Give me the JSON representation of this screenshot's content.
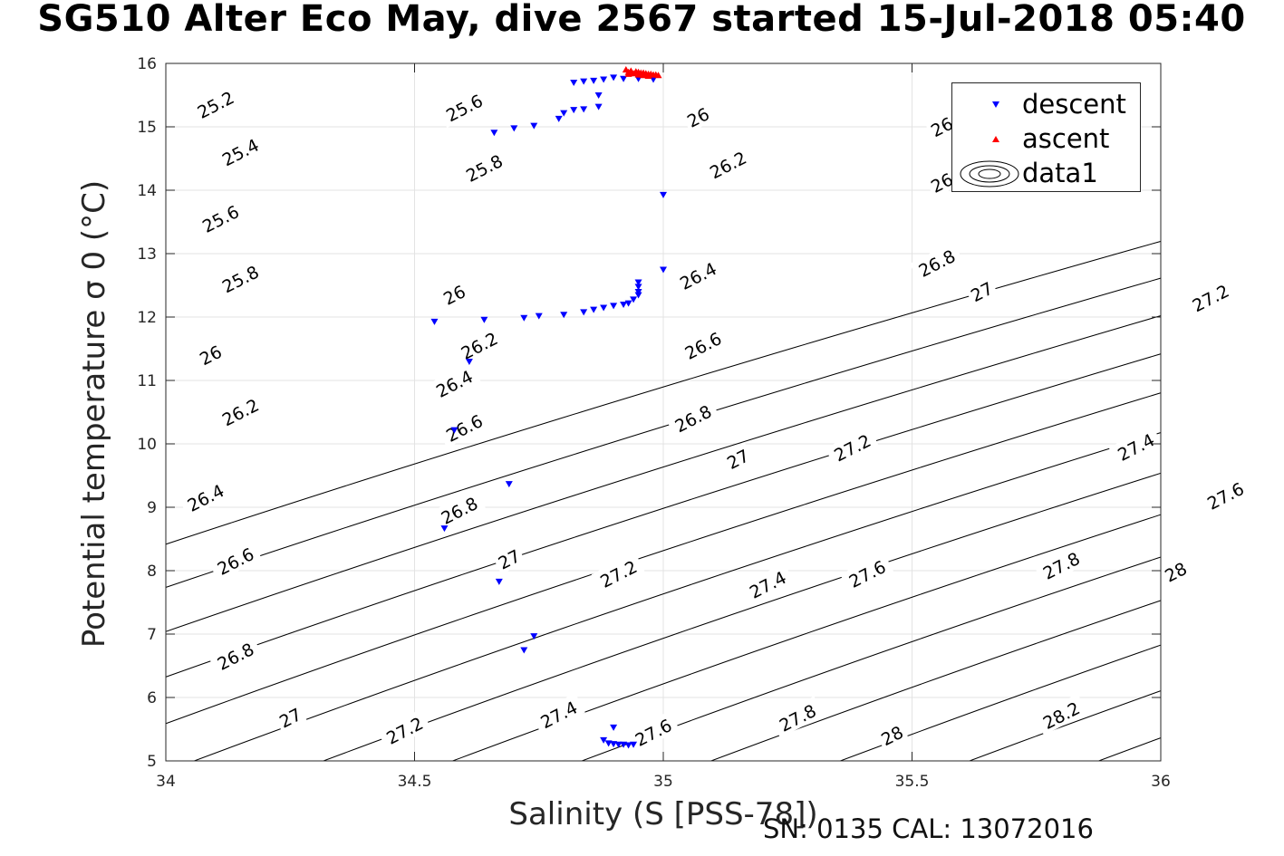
{
  "chart_data": {
    "type": "scatter",
    "title": "SG510 Alter Eco May, dive 2567 started 15-Jul-2018 05:40",
    "xlabel": "Salinity (S [PSS-78])",
    "ylabel": "Potential temperature σ 0 (°C)",
    "xlim": [
      34,
      36
    ],
    "ylim": [
      5,
      16
    ],
    "xticks": [
      "34",
      "34.5",
      "35",
      "35.5",
      "36"
    ],
    "yticks": [
      "5",
      "6",
      "7",
      "8",
      "9",
      "10",
      "11",
      "12",
      "13",
      "14",
      "15",
      "16"
    ],
    "grid": true,
    "legend_position": "top-right",
    "footer": "SN: 0135  CAL: 13072016",
    "series": [
      {
        "name": "descent",
        "marker": "triangle-down",
        "color": "#0000ff",
        "points": [
          [
            34.9,
            15.78
          ],
          [
            34.92,
            15.76
          ],
          [
            34.95,
            15.76
          ],
          [
            34.98,
            15.75
          ],
          [
            34.88,
            15.75
          ],
          [
            34.86,
            15.73
          ],
          [
            34.84,
            15.72
          ],
          [
            34.82,
            15.7
          ],
          [
            34.87,
            15.5
          ],
          [
            34.87,
            15.32
          ],
          [
            34.84,
            15.28
          ],
          [
            34.82,
            15.27
          ],
          [
            34.8,
            15.22
          ],
          [
            34.79,
            15.13
          ],
          [
            34.74,
            15.02
          ],
          [
            34.7,
            14.98
          ],
          [
            34.66,
            14.91
          ],
          [
            35.0,
            13.93
          ],
          [
            34.95,
            12.55
          ],
          [
            34.95,
            12.48
          ],
          [
            34.95,
            12.4
          ],
          [
            34.95,
            12.35
          ],
          [
            34.94,
            12.28
          ],
          [
            34.93,
            12.22
          ],
          [
            34.92,
            12.2
          ],
          [
            34.9,
            12.18
          ],
          [
            34.88,
            12.15
          ],
          [
            34.86,
            12.12
          ],
          [
            34.84,
            12.08
          ],
          [
            34.8,
            12.04
          ],
          [
            34.75,
            12.02
          ],
          [
            34.72,
            11.99
          ],
          [
            34.64,
            11.96
          ],
          [
            34.54,
            11.93
          ],
          [
            35.0,
            12.75
          ],
          [
            34.61,
            11.3
          ],
          [
            34.58,
            10.22
          ],
          [
            34.69,
            9.37
          ],
          [
            34.56,
            8.67
          ],
          [
            34.67,
            7.83
          ],
          [
            34.74,
            6.97
          ],
          [
            34.72,
            6.75
          ],
          [
            34.9,
            5.53
          ],
          [
            34.88,
            5.33
          ],
          [
            34.89,
            5.28
          ],
          [
            34.9,
            5.27
          ],
          [
            34.91,
            5.26
          ],
          [
            34.92,
            5.26
          ],
          [
            34.93,
            5.25
          ],
          [
            34.94,
            5.26
          ]
        ]
      },
      {
        "name": "ascent",
        "marker": "triangle-up",
        "color": "#ff0000",
        "points": [
          [
            34.925,
            15.9
          ],
          [
            34.935,
            15.88
          ],
          [
            34.945,
            15.87
          ],
          [
            34.95,
            15.86
          ],
          [
            34.955,
            15.85
          ],
          [
            34.96,
            15.85
          ],
          [
            34.965,
            15.84
          ],
          [
            34.97,
            15.83
          ],
          [
            34.975,
            15.83
          ],
          [
            34.98,
            15.82
          ],
          [
            34.985,
            15.82
          ],
          [
            34.99,
            15.81
          ],
          [
            34.93,
            15.86
          ],
          [
            34.94,
            15.84
          ],
          [
            34.95,
            15.82
          ],
          [
            34.96,
            15.81
          ],
          [
            34.97,
            15.8
          ],
          [
            34.93,
            15.83
          ]
        ]
      }
    ],
    "contours": {
      "name": "data1",
      "levels": [
        "25.2",
        "25.4",
        "25.6",
        "25.8",
        "26",
        "26.2",
        "26.4",
        "26.6",
        "26.8",
        "27",
        "27.2",
        "27.4",
        "27.6",
        "27.8",
        "28",
        "28.2"
      ],
      "labels": [
        {
          "level": "25.2",
          "x": 34.1,
          "y": 15.35
        },
        {
          "level": "25.4",
          "x": 34.15,
          "y": 14.6
        },
        {
          "level": "25.6",
          "x": 34.11,
          "y": 13.55
        },
        {
          "level": "25.8",
          "x": 34.15,
          "y": 12.6
        },
        {
          "level": "26",
          "x": 34.09,
          "y": 11.4
        },
        {
          "level": "26.2",
          "x": 34.15,
          "y": 10.5
        },
        {
          "level": "26.4",
          "x": 34.08,
          "y": 9.15
        },
        {
          "level": "26.6",
          "x": 34.14,
          "y": 8.15
        },
        {
          "level": "26.8",
          "x": 34.14,
          "y": 6.65
        },
        {
          "level": "27",
          "x": 34.25,
          "y": 5.68
        },
        {
          "level": "25.6",
          "x": 34.6,
          "y": 15.3
        },
        {
          "level": "25.8",
          "x": 34.64,
          "y": 14.35
        },
        {
          "level": "26",
          "x": 34.58,
          "y": 12.35
        },
        {
          "level": "26.2",
          "x": 34.63,
          "y": 11.55
        },
        {
          "level": "26.4",
          "x": 34.58,
          "y": 10.95
        },
        {
          "level": "26.6",
          "x": 34.6,
          "y": 10.25
        },
        {
          "level": "26.8",
          "x": 34.59,
          "y": 8.95
        },
        {
          "level": "27",
          "x": 34.69,
          "y": 8.18
        },
        {
          "level": "27.2",
          "x": 34.48,
          "y": 5.48
        },
        {
          "level": "26",
          "x": 35.07,
          "y": 15.15
        },
        {
          "level": "26.2",
          "x": 35.13,
          "y": 14.4
        },
        {
          "level": "26.4",
          "x": 35.07,
          "y": 12.65
        },
        {
          "level": "26.6",
          "x": 35.08,
          "y": 11.55
        },
        {
          "level": "26.8",
          "x": 35.06,
          "y": 10.4
        },
        {
          "level": "27",
          "x": 35.15,
          "y": 9.76
        },
        {
          "level": "27.2",
          "x": 34.91,
          "y": 7.95
        },
        {
          "level": "27.4",
          "x": 34.79,
          "y": 5.73
        },
        {
          "level": "27.6",
          "x": 34.98,
          "y": 5.45
        },
        {
          "level": "26",
          "x": 35.56,
          "y": 15.0
        },
        {
          "level": "26",
          "x": 35.56,
          "y": 14.12
        },
        {
          "level": "26.8",
          "x": 35.55,
          "y": 12.85
        },
        {
          "level": "27",
          "x": 35.64,
          "y": 12.4
        },
        {
          "level": "27.2",
          "x": 35.38,
          "y": 9.94
        },
        {
          "level": "27.4",
          "x": 35.21,
          "y": 7.78
        },
        {
          "level": "27.6",
          "x": 35.41,
          "y": 7.95
        },
        {
          "level": "27.8",
          "x": 35.27,
          "y": 5.68
        },
        {
          "level": "28",
          "x": 35.46,
          "y": 5.4
        },
        {
          "level": "27.2",
          "x": 36.1,
          "y": 12.3
        },
        {
          "level": "27.4",
          "x": 35.95,
          "y": 9.95
        },
        {
          "level": "27.6",
          "x": 36.13,
          "y": 9.18
        },
        {
          "level": "27.8",
          "x": 35.8,
          "y": 8.08
        },
        {
          "level": "28",
          "x": 36.03,
          "y": 7.98
        },
        {
          "level": "28.2",
          "x": 35.8,
          "y": 5.72
        }
      ]
    }
  }
}
